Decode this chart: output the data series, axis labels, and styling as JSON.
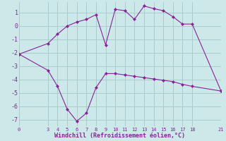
{
  "xlabel": "Windchill (Refroidissement éolien,°C)",
  "background_color": "#cce8e8",
  "grid_color": "#aacccc",
  "line_color": "#882299",
  "line1_x": [
    0,
    3,
    4,
    5,
    6,
    7,
    8,
    9,
    10,
    11,
    12,
    13,
    14,
    15,
    16,
    17,
    18,
    21
  ],
  "line1_y": [
    -2.1,
    -3.3,
    -4.5,
    -6.2,
    -7.1,
    -6.5,
    -4.6,
    -3.55,
    -3.55,
    -3.65,
    -3.75,
    -3.85,
    -3.95,
    -4.05,
    -4.15,
    -4.35,
    -4.5,
    -4.85
  ],
  "line2_x": [
    0,
    3,
    4,
    5,
    6,
    7,
    8,
    9,
    10,
    11,
    12,
    13,
    14,
    15,
    16,
    17,
    18,
    21
  ],
  "line2_y": [
    -2.1,
    -1.3,
    -0.6,
    0.0,
    0.3,
    0.5,
    0.85,
    -1.4,
    1.25,
    1.15,
    0.5,
    1.5,
    1.3,
    1.15,
    0.7,
    0.15,
    0.15,
    -4.85
  ],
  "xlim": [
    0,
    21
  ],
  "ylim": [
    -7.5,
    1.8
  ],
  "yticks": [
    -7,
    -6,
    -5,
    -4,
    -3,
    -2,
    -1,
    0,
    1
  ],
  "xticks": [
    0,
    3,
    4,
    5,
    6,
    7,
    8,
    9,
    10,
    11,
    12,
    13,
    14,
    15,
    16,
    17,
    18,
    21
  ],
  "markersize": 2.5
}
